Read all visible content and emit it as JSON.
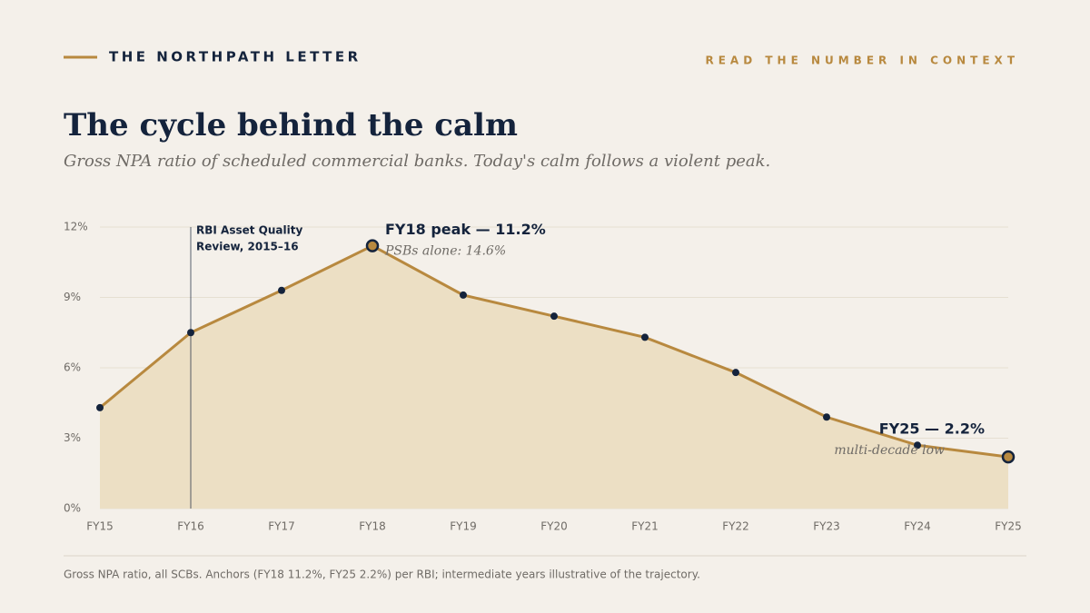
{
  "header": {
    "brand": "THE NORTHPATH LETTER",
    "tagline": "READ THE NUMBER IN CONTEXT"
  },
  "chart_data": {
    "type": "line",
    "title": "The cycle behind the calm",
    "subtitle": "Gross NPA ratio of scheduled commercial banks. Today's calm follows a violent peak.",
    "categories": [
      "FY15",
      "FY16",
      "FY17",
      "FY18",
      "FY19",
      "FY20",
      "FY21",
      "FY22",
      "FY23",
      "FY24",
      "FY25"
    ],
    "series": [
      {
        "name": "Gross NPA ratio",
        "color": "#b8893f",
        "area_color": "#ecdfc4",
        "values": [
          4.3,
          7.5,
          9.3,
          11.2,
          9.1,
          8.2,
          7.3,
          5.8,
          3.9,
          2.7,
          2.2
        ]
      }
    ],
    "ylim": [
      0,
      12
    ],
    "yticks": [
      {
        "value": 0,
        "label": "0%"
      },
      {
        "value": 3,
        "label": "3%"
      },
      {
        "value": 6,
        "label": "6%"
      },
      {
        "value": 9,
        "label": "9%"
      },
      {
        "value": 12,
        "label": "12%"
      }
    ],
    "grid": true,
    "highlight": [
      "FY18",
      "FY25"
    ],
    "reference_line": {
      "at": "FY16",
      "lines": [
        "RBI Asset Quality",
        "Review, 2015–16"
      ]
    },
    "annotations": [
      {
        "at": "FY18",
        "label": "FY18 peak — 11.2%",
        "note": "PSBs alone: 14.6%"
      },
      {
        "at": "FY25",
        "label": "FY25 — 2.2%",
        "note": "multi-decade low"
      }
    ],
    "footnote": "Gross NPA ratio, all SCBs. Anchors (FY18 11.2%, FY25 2.2%) per RBI; intermediate years illustrative of the trajectory."
  }
}
